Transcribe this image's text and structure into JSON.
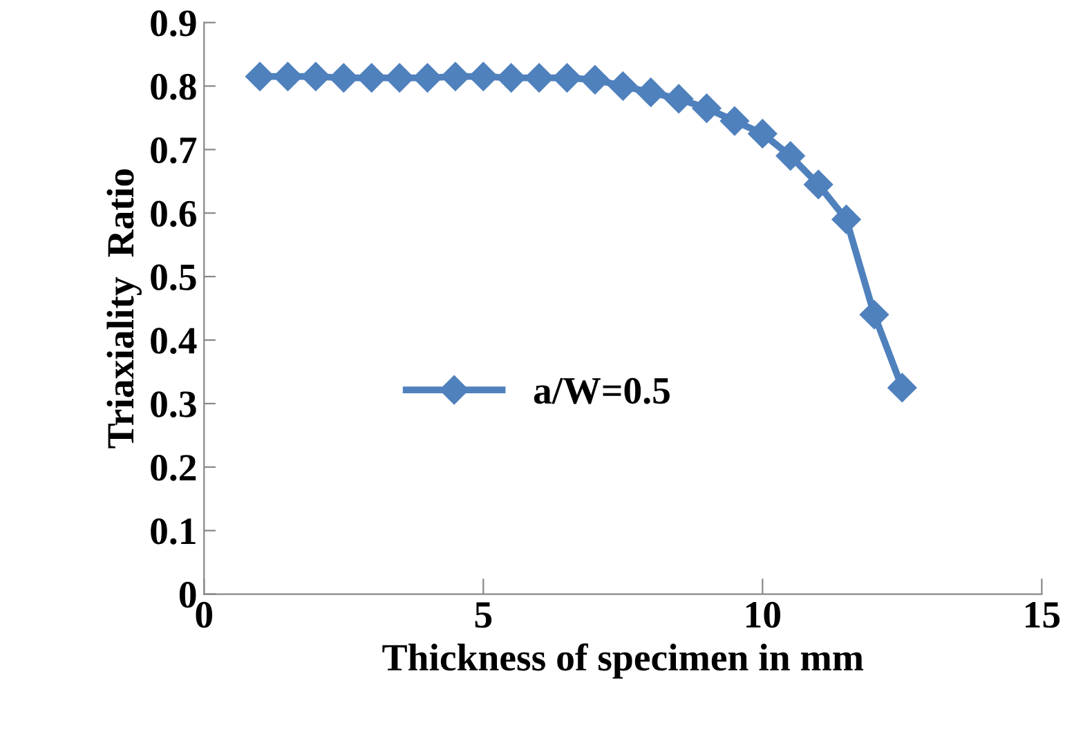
{
  "chart_data": {
    "type": "line",
    "xlabel": "Thickness of specimen in mm",
    "ylabel": "Triaxiality  Ratio",
    "x": [
      1,
      1.5,
      2,
      2.5,
      3,
      3.5,
      4,
      4.5,
      5,
      5.5,
      6,
      6.5,
      7,
      7.5,
      8,
      8.5,
      9,
      9.5,
      10,
      10.5,
      11,
      11.5,
      12,
      12.5
    ],
    "series": [
      {
        "name": "a/W=0.5",
        "color": "#4f81bd",
        "values": [
          0.815,
          0.815,
          0.815,
          0.813,
          0.813,
          0.813,
          0.813,
          0.815,
          0.815,
          0.813,
          0.813,
          0.813,
          0.81,
          0.8,
          0.79,
          0.78,
          0.765,
          0.745,
          0.725,
          0.69,
          0.645,
          0.59,
          0.44,
          0.325
        ]
      }
    ],
    "xlim": [
      0,
      15
    ],
    "xticks": [
      0,
      5,
      10,
      15
    ],
    "ylim": [
      0,
      0.9
    ],
    "yticks": [
      0,
      0.1,
      0.2,
      0.3,
      0.4,
      0.5,
      0.6,
      0.7,
      0.8,
      0.9
    ],
    "marker": "diamond",
    "line_style": "solid",
    "legend": "center left",
    "grid": false
  }
}
